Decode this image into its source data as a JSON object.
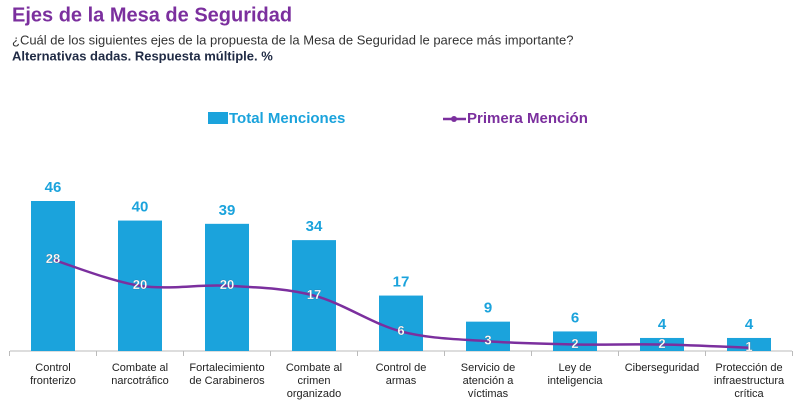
{
  "chart_data": {
    "type": "bar_line",
    "title": "Ejes de la Mesa de Seguridad",
    "subtitle": "¿Cuál de los siguientes ejes de la propuesta de la Mesa de Seguridad le parece más importante?",
    "note": "Alternativas dadas. Respuesta múltiple. %",
    "categories": [
      [
        "Control",
        "fronterizo"
      ],
      [
        "Combate al",
        "narcotráfico"
      ],
      [
        "Fortalecimiento",
        "de Carabineros"
      ],
      [
        "Combate al",
        "crimen",
        "organizado"
      ],
      [
        "Control de",
        "armas"
      ],
      [
        "Servicio de",
        "atención a",
        "víctimas"
      ],
      [
        "Ley de",
        "inteligencia"
      ],
      [
        "Ciberseguridad"
      ],
      [
        "Protección de",
        "infraestructura",
        "crítica"
      ]
    ],
    "series": [
      {
        "name": "Total Menciones",
        "kind": "bar",
        "color": "#1ba3dc",
        "values": [
          46,
          40,
          39,
          34,
          17,
          9,
          6,
          4,
          4
        ]
      },
      {
        "name": "Primera Mención",
        "kind": "line",
        "color": "#7b2f9e",
        "values": [
          28,
          20,
          20,
          17,
          6,
          3,
          2,
          2,
          1
        ]
      }
    ],
    "ylim": [
      0,
      46
    ],
    "legend": "top"
  }
}
